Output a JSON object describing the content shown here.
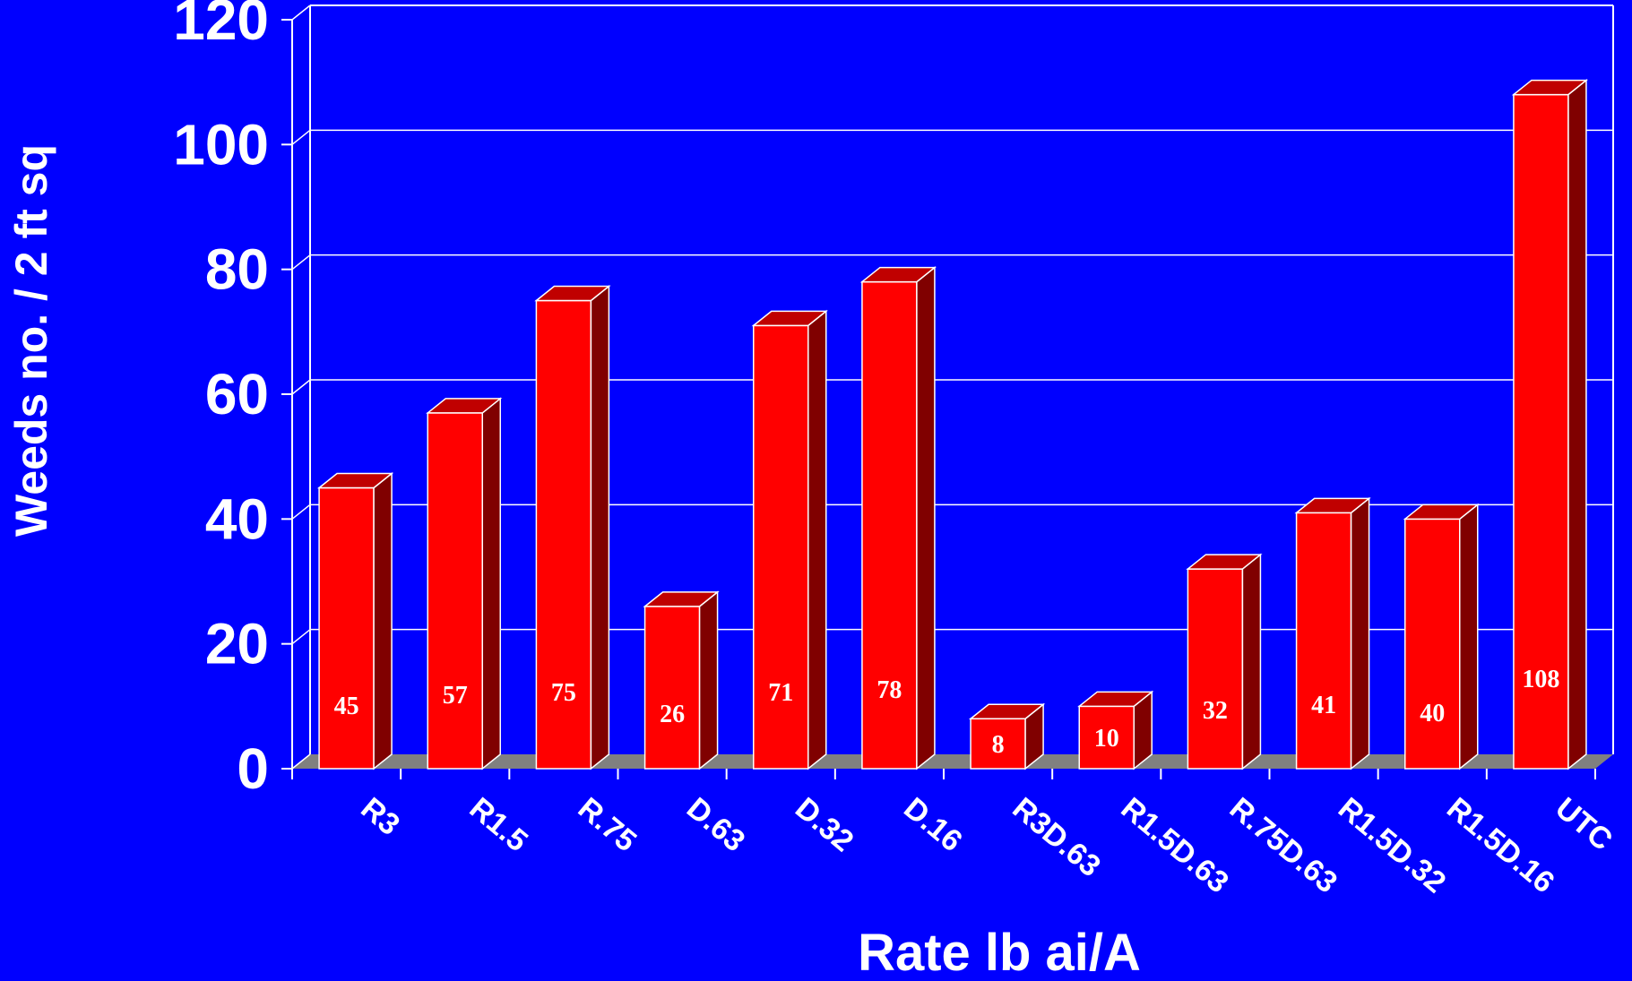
{
  "chart_data": {
    "type": "bar",
    "title": "",
    "xlabel": "Rate lb ai/A",
    "ylabel": "Weeds no. / 2 ft sq",
    "ylim": [
      0,
      120
    ],
    "yticks": [
      "0",
      "20",
      "40",
      "60",
      "80",
      "100",
      "120"
    ],
    "grid": true,
    "categories": [
      "R3",
      "R1.5",
      "R.75",
      "D.63",
      "D.32",
      "D.16",
      "R3D.63",
      "R1.5D.63",
      "R.75D.63",
      "R1.5D.32",
      "R1.5D.16",
      "UTC"
    ],
    "values": [
      45,
      57,
      75,
      26,
      71,
      78,
      8,
      10,
      32,
      41,
      40,
      108
    ],
    "data_labels": [
      "45",
      "57",
      "75",
      "26",
      "71",
      "78",
      "8",
      "10",
      "32",
      "41",
      "40",
      "108"
    ]
  },
  "colors": {
    "background": "#0000FF",
    "bar_front": "#FF0000",
    "bar_side": "#800000",
    "bar_top": "#C00000",
    "floor": "#808080",
    "grid": "#FFFFFF",
    "text": "#FFFFFF"
  }
}
